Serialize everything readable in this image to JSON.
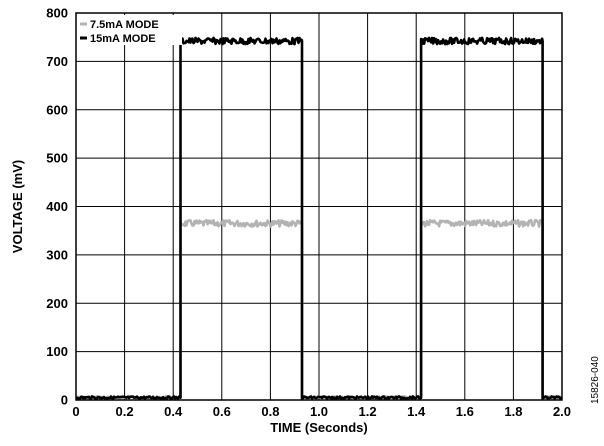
{
  "chart_data": {
    "type": "line",
    "xlabel": "TIME (Seconds)",
    "ylabel": "VOLTAGE (mV)",
    "xlim": [
      0,
      2.0
    ],
    "ylim": [
      0,
      800
    ],
    "xticks": [
      "0",
      "0.2",
      "0.4",
      "0.6",
      "0.8",
      "1.0",
      "1.2",
      "1.4",
      "1.6",
      "1.8",
      "2.0"
    ],
    "yticks": [
      "0",
      "100",
      "200",
      "300",
      "400",
      "500",
      "600",
      "700",
      "800"
    ],
    "grid": true,
    "legend_position": "top-left",
    "series": [
      {
        "name": "7.5mA MODE",
        "color": "#b3b3b3",
        "x": [
          0,
          0.43,
          0.43,
          0.93,
          0.93,
          1.42,
          1.42,
          1.92,
          1.92,
          2.0
        ],
        "y": [
          5,
          5,
          365,
          365,
          5,
          5,
          365,
          365,
          5,
          5
        ]
      },
      {
        "name": "15mA MODE",
        "color": "#000000",
        "x": [
          0,
          0.43,
          0.43,
          0.93,
          0.93,
          1.42,
          1.42,
          1.92,
          1.92,
          2.0
        ],
        "y": [
          5,
          5,
          742,
          742,
          5,
          5,
          742,
          742,
          5,
          5
        ]
      }
    ]
  },
  "figure_id": "15826-040"
}
